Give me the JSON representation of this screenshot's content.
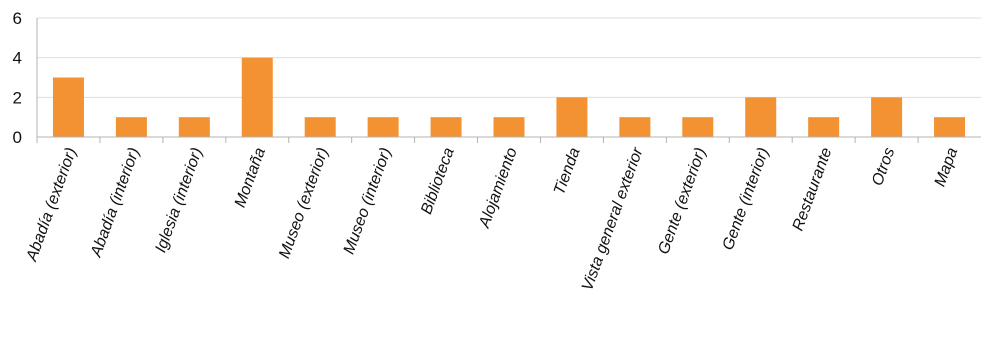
{
  "chart_data": {
    "type": "bar",
    "categories": [
      "Abadía (exterior)",
      "Abadía (interior)",
      "Iglesia (interior)",
      "Montaña",
      "Museo (exterior)",
      "Museo (interior)",
      "Biblioteca",
      "Alojamiento",
      "Tienda",
      "Vista general exterior",
      "Gente (exterior)",
      "Gente (interior)",
      "Restaurante",
      "Otros",
      "Mapa"
    ],
    "values": [
      3,
      1,
      1,
      4,
      1,
      1,
      1,
      1,
      2,
      1,
      1,
      2,
      1,
      2,
      1
    ],
    "yticks": [
      0,
      2,
      4,
      6
    ],
    "ylim": [
      0,
      6
    ],
    "grid": true,
    "legend": "none",
    "bar_color": "#f39232",
    "title": "",
    "xlabel": "",
    "ylabel": ""
  }
}
